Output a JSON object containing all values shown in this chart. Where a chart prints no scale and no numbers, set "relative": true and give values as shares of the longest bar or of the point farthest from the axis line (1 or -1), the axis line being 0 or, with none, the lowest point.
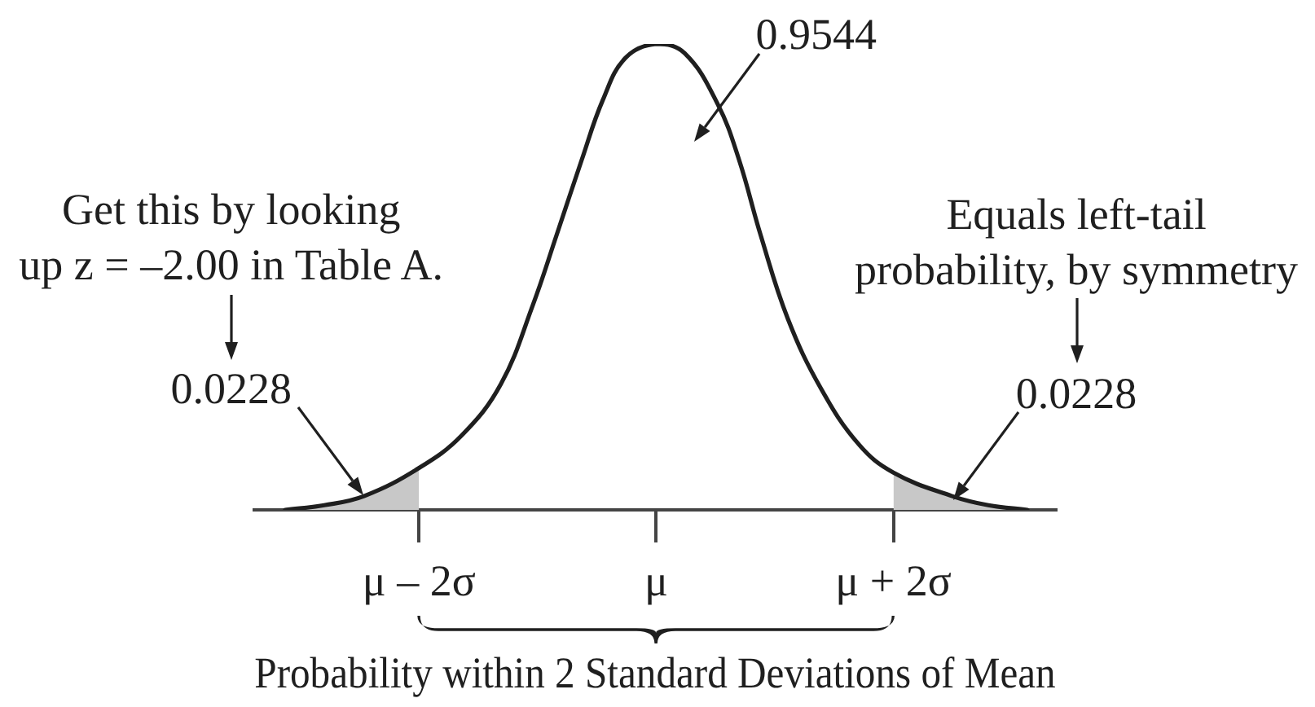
{
  "chart_data": {
    "type": "line",
    "relative": true,
    "marker": "none",
    "x": [
      -3.13,
      -2.8,
      -2.46,
      -2,
      -1.64,
      -1.31,
      -1.04,
      -0.84,
      -0.63,
      -0.45,
      -0.26,
      0,
      0.24,
      0.52,
      0.7,
      0.88,
      1.11,
      1.39,
      1.71,
      2,
      2.49,
      2.8,
      3.13
    ],
    "series": [
      {
        "color": "#1f1f1f",
        "values": [
          0,
          0.01,
          0.03,
          0.09,
          0.16,
          0.27,
          0.44,
          0.59,
          0.75,
          0.88,
          0.97,
          1,
          0.98,
          0.87,
          0.75,
          0.59,
          0.41,
          0.26,
          0.14,
          0.08,
          0.03,
          0.01,
          0
        ]
      },
      {
        "type": "area",
        "color": "#c8c8c8",
        "x": [
          -3.13,
          -2.8,
          -2.46,
          -2
        ],
        "values": [
          0,
          0.01,
          0.03,
          0.09
        ]
      },
      {
        "type": "area",
        "color": "#c8c8c8",
        "x": [
          2,
          2.49,
          2.8,
          3.13
        ],
        "values": [
          0.08,
          0.03,
          0.01,
          0
        ]
      }
    ],
    "xlim": [
      -3.39,
      3.37
    ],
    "xticks": [
      {
        "value": -2,
        "label": "μ – 2σ"
      },
      {
        "value": 0,
        "label": "μ"
      },
      {
        "value": 2,
        "label": "μ + 2σ"
      }
    ],
    "xlabel": "Probability within 2 Standard Deviations of Mean",
    "annotations": [
      "0.9544",
      {
        "text": "0.0228",
        "x": -2.47,
        "y": 0.03
      },
      "Get this by looking\nup z = –2.00 in Table A.",
      {
        "text": "0.0228",
        "x": 2.51,
        "y": 0.02
      },
      "Equals left-tail\nprobability, by symmetry"
    ]
  }
}
